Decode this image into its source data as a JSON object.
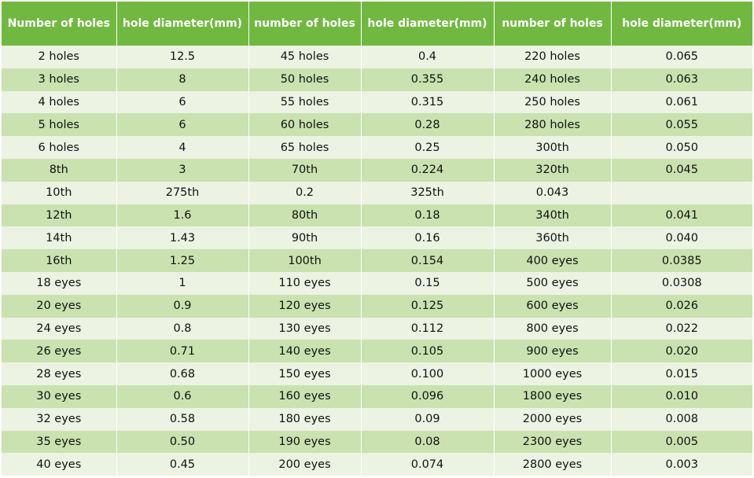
{
  "table": {
    "headers": [
      "Number of holes",
      "hole diameter(mm)",
      "number of holes",
      "hole diameter(mm)",
      "number of holes",
      "hole diameter(mm)"
    ],
    "rows": [
      [
        "2 holes",
        "12.5",
        "45 holes",
        "0.4",
        "220 holes",
        "0.065"
      ],
      [
        "3 holes",
        "8",
        "50 holes",
        "0.355",
        "240 holes",
        "0.063"
      ],
      [
        "4 holes",
        "6",
        "55 holes",
        "0.315",
        "250 holes",
        "0.061"
      ],
      [
        "5 holes",
        "6",
        "60 holes",
        "0.28",
        "280 holes",
        "0.055"
      ],
      [
        "6 holes",
        "4",
        "65 holes",
        "0.25",
        "300th",
        "0.050"
      ],
      [
        "8th",
        "3",
        "70th",
        "0.224",
        "320th",
        "0.045"
      ],
      [
        "10th",
        "275th",
        "0.2",
        "325th",
        "0.043",
        ""
      ],
      [
        "12th",
        "1.6",
        "80th",
        "0.18",
        "340th",
        "0.041"
      ],
      [
        "14th",
        "1.43",
        "90th",
        "0.16",
        "360th",
        "0.040"
      ],
      [
        "16th",
        "1.25",
        "100th",
        "0.154",
        "400 eyes",
        "0.0385"
      ],
      [
        "18 eyes",
        "1",
        "110 eyes",
        "0.15",
        "500 eyes",
        "0.0308"
      ],
      [
        "20 eyes",
        "0.9",
        "120 eyes",
        "0.125",
        "600 eyes",
        "0.026"
      ],
      [
        "24 eyes",
        "0.8",
        "130 eyes",
        "0.112",
        "800 eyes",
        "0.022"
      ],
      [
        "26 eyes",
        "0.71",
        "140 eyes",
        "0.105",
        "900 eyes",
        "0.020"
      ],
      [
        "28 eyes",
        "0.68",
        "150 eyes",
        "0.100",
        "1000 eyes",
        "0.015"
      ],
      [
        "30 eyes",
        "0.6",
        "160 eyes",
        "0.096",
        "1800 eyes",
        "0.010"
      ],
      [
        "32 eyes",
        "0.58",
        "180 eyes",
        "0.09",
        "2000 eyes",
        "0.008"
      ],
      [
        "35 eyes",
        "0.50",
        "190 eyes",
        "0.08",
        "2300 eyes",
        "0.005"
      ],
      [
        "40 eyes",
        "0.45",
        "200 eyes",
        "0.074",
        "2800 eyes",
        "0.003"
      ]
    ]
  },
  "colors": {
    "header_bg": "#71b840",
    "header_text": "#ffffff",
    "row_light": "#ecf3e3",
    "row_dark": "#c9e2b0"
  }
}
